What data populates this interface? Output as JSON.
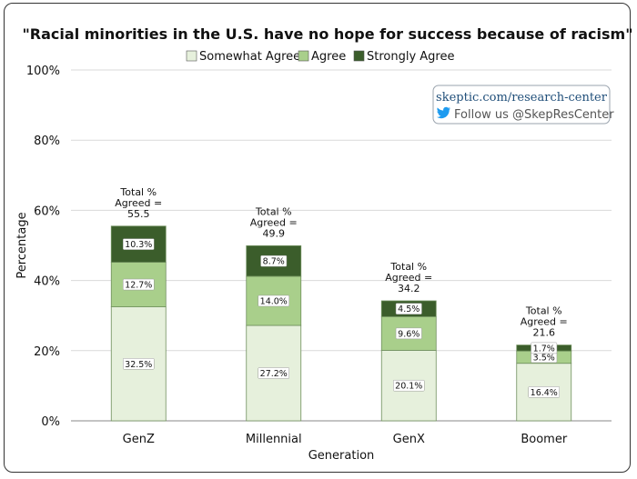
{
  "chart_data": {
    "type": "bar",
    "stacked": true,
    "title": "\"Racial minorities in the U.S. have no hope for success because of racism\"",
    "xlabel": "Generation",
    "ylabel": "Percentage",
    "ylim": [
      0,
      100
    ],
    "yticks": [
      0,
      20,
      40,
      60,
      80,
      100
    ],
    "ytick_labels": [
      "0%",
      "20%",
      "40%",
      "60%",
      "80%",
      "100%"
    ],
    "grid": true,
    "legend_position": "top",
    "categories": [
      "GenZ",
      "Millennial",
      "GenX",
      "Boomer"
    ],
    "series": [
      {
        "name": "Somewhat Agree",
        "color": "#e6f0dc",
        "values": [
          32.5,
          27.2,
          20.1,
          16.4
        ],
        "labels": [
          "32.5%",
          "27.2%",
          "20.1%",
          "16.4%"
        ]
      },
      {
        "name": "Agree",
        "color": "#a9cf8b",
        "values": [
          12.7,
          14.0,
          9.6,
          3.5
        ],
        "labels": [
          "12.7%",
          "14.0%",
          "9.6%",
          "3.5%"
        ]
      },
      {
        "name": "Strongly Agree",
        "color": "#3b5d2b",
        "values": [
          10.3,
          8.7,
          4.5,
          1.7
        ],
        "labels": [
          "10.3%",
          "8.7%",
          "4.5%",
          "1.7%"
        ]
      }
    ],
    "totals": [
      55.5,
      49.9,
      34.2,
      21.6
    ],
    "total_label_lines": [
      "Total %",
      "Agreed ="
    ]
  },
  "source": {
    "url": "skeptic.com/research-center",
    "follow": "Follow us @SkepResCenter",
    "icon": "twitter-bird-icon",
    "icon_color": "#1d9bf0"
  }
}
